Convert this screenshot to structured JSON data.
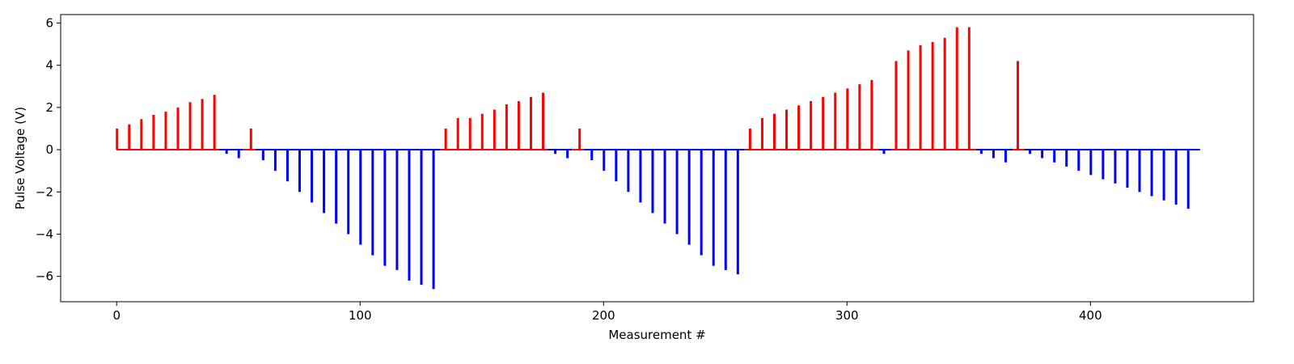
{
  "chart_data": {
    "type": "bar",
    "xlabel": "Measurement #",
    "ylabel": "Pulse Voltage (V)",
    "xlim": [
      -23,
      467
    ],
    "ylim": [
      -7.2,
      6.4
    ],
    "xticks": [
      0,
      100,
      200,
      300,
      400
    ],
    "yticks": [
      -6,
      -4,
      -2,
      0,
      2,
      4,
      6
    ],
    "grid": false,
    "colors": {
      "positive": "#ff0000",
      "negative": "#0000ff",
      "baseline_positive": "#ff0000",
      "baseline_negative": "#0000ff"
    },
    "baseline_segments": [
      {
        "x_start": 0,
        "x_end": 42,
        "polarity": "positive"
      },
      {
        "x_start": 42,
        "x_end": 52,
        "polarity": "negative"
      },
      {
        "x_start": 52,
        "x_end": 57,
        "polarity": "positive"
      },
      {
        "x_start": 57,
        "x_end": 133,
        "polarity": "negative"
      },
      {
        "x_start": 133,
        "x_end": 177,
        "polarity": "positive"
      },
      {
        "x_start": 177,
        "x_end": 187,
        "polarity": "negative"
      },
      {
        "x_start": 187,
        "x_end": 192,
        "polarity": "positive"
      },
      {
        "x_start": 192,
        "x_end": 258,
        "polarity": "negative"
      },
      {
        "x_start": 258,
        "x_end": 313,
        "polarity": "positive"
      },
      {
        "x_start": 313,
        "x_end": 318,
        "polarity": "negative"
      },
      {
        "x_start": 318,
        "x_end": 353,
        "polarity": "positive"
      },
      {
        "x_start": 353,
        "x_end": 368,
        "polarity": "negative"
      },
      {
        "x_start": 368,
        "x_end": 373,
        "polarity": "positive"
      },
      {
        "x_start": 373,
        "x_end": 445,
        "polarity": "negative"
      }
    ],
    "series": [
      {
        "polarity": "positive",
        "x": [
          0,
          5,
          10,
          15,
          20,
          25,
          30,
          35,
          40,
          55,
          135,
          140,
          145,
          150,
          155,
          160,
          165,
          170,
          175,
          190,
          260,
          265,
          270,
          275,
          280,
          285,
          290,
          295,
          300,
          305,
          310,
          320,
          325,
          330,
          335,
          340,
          345,
          350,
          370
        ],
        "values": [
          1.0,
          1.2,
          1.45,
          1.65,
          1.8,
          2.0,
          2.25,
          2.4,
          2.6,
          1.0,
          1.0,
          1.5,
          1.5,
          1.7,
          1.9,
          2.15,
          2.3,
          2.5,
          2.7,
          1.0,
          1.0,
          1.5,
          1.7,
          1.9,
          2.1,
          2.3,
          2.5,
          2.7,
          2.9,
          3.1,
          3.3,
          4.2,
          4.7,
          4.95,
          5.1,
          5.3,
          5.8,
          5.8,
          4.2
        ]
      },
      {
        "polarity": "negative",
        "x": [
          45,
          50,
          60,
          65,
          70,
          75,
          80,
          85,
          90,
          95,
          100,
          105,
          110,
          115,
          120,
          125,
          130,
          180,
          185,
          195,
          200,
          205,
          210,
          215,
          220,
          225,
          230,
          235,
          240,
          245,
          250,
          255,
          315,
          355,
          360,
          365,
          375,
          380,
          385,
          390,
          395,
          400,
          405,
          410,
          415,
          420,
          425,
          430,
          435,
          440
        ],
        "values": [
          -0.2,
          -0.4,
          -0.5,
          -1.0,
          -1.5,
          -2.0,
          -2.5,
          -3.0,
          -3.5,
          -4.0,
          -4.5,
          -5.0,
          -5.5,
          -5.7,
          -6.2,
          -6.4,
          -6.6,
          -0.2,
          -0.4,
          -0.5,
          -1.0,
          -1.5,
          -2.0,
          -2.5,
          -3.0,
          -3.5,
          -4.0,
          -4.5,
          -5.0,
          -5.5,
          -5.7,
          -5.9,
          -0.2,
          -0.2,
          -0.4,
          -0.6,
          -0.2,
          -0.4,
          -0.6,
          -0.8,
          -1.0,
          -1.2,
          -1.4,
          -1.6,
          -1.8,
          -2.0,
          -2.2,
          -2.4,
          -2.6,
          -2.8
        ]
      }
    ]
  }
}
